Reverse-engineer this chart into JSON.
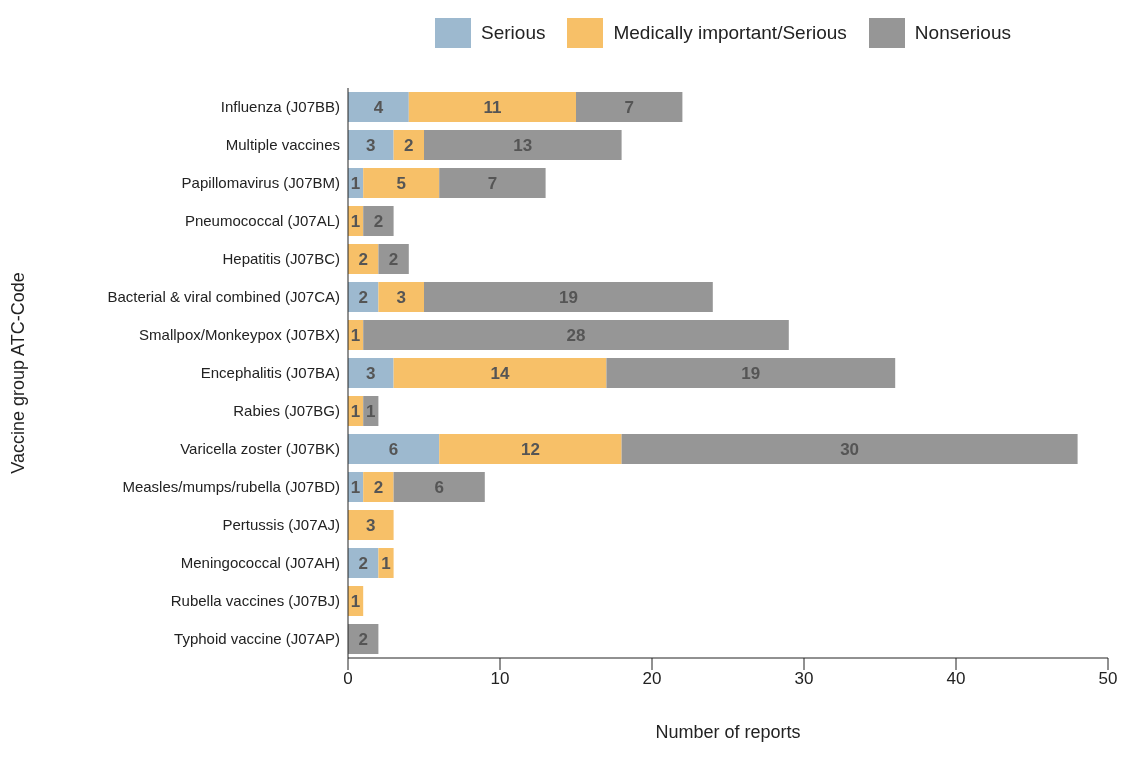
{
  "chart_data": {
    "type": "bar",
    "orientation": "horizontal",
    "stacked": true,
    "ylabel": "Vaccine group ATC-Code",
    "xlabel": "Number of reports",
    "categories": [
      "Influenza (J07BB)",
      "Multiple vaccines",
      "Papillomavirus (J07BM)",
      "Pneumococcal (J07AL)",
      "Hepatitis (J07BC)",
      "Bacterial & viral combined (J07CA)",
      "Smallpox/Monkeypox (J07BX)",
      "Encephalitis (J07BA)",
      "Rabies (J07BG)",
      "Varicella zoster (J07BK)",
      "Measles/mumps/rubella (J07BD)",
      "Pertussis (J07AJ)",
      "Meningococcal (J07AH)",
      "Rubella vaccines (J07BJ)",
      "Typhoid vaccine (J07AP)"
    ],
    "series": [
      {
        "name": "Serious",
        "color": "#9db9cf",
        "values": [
          4,
          3,
          1,
          null,
          null,
          2,
          null,
          3,
          null,
          6,
          1,
          null,
          2,
          null,
          null
        ]
      },
      {
        "name": "Medically important/Serious",
        "color": "#f7c068",
        "values": [
          11,
          2,
          5,
          1,
          2,
          3,
          1,
          14,
          1,
          12,
          2,
          3,
          1,
          1,
          null
        ]
      },
      {
        "name": "Nonserious",
        "color": "#969696",
        "values": [
          7,
          13,
          7,
          2,
          2,
          19,
          28,
          19,
          1,
          30,
          6,
          null,
          null,
          null,
          2
        ]
      }
    ],
    "xlim": [
      0,
      50
    ],
    "xticks": [
      0,
      10,
      20,
      30,
      40,
      50
    ],
    "grid": false,
    "legend": "top",
    "data_labels": true
  }
}
